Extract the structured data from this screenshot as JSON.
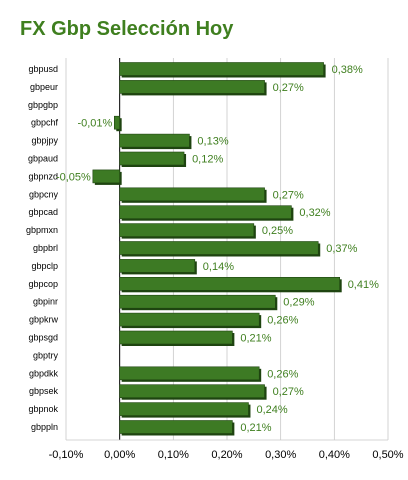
{
  "chart_data": {
    "type": "bar",
    "orientation": "horizontal",
    "title": "FX Gbp Selección Hoy",
    "categories": [
      "gbpusd",
      "gbpeur",
      "gbpgbp",
      "gbpchf",
      "gbpjpy",
      "gbpaud",
      "gbpnzd",
      "gbpcny",
      "gbpcad",
      "gbpmxn",
      "gbpbrl",
      "gbpclp",
      "gbpcop",
      "gbpinr",
      "gbpkrw",
      "gbpsgd",
      "gbptry",
      "gbpdkk",
      "gbpsek",
      "gbpnok",
      "gbppln"
    ],
    "values": [
      0.38,
      0.27,
      null,
      -0.01,
      0.13,
      0.12,
      -0.05,
      0.27,
      0.32,
      0.25,
      0.37,
      0.14,
      0.41,
      0.29,
      0.26,
      0.21,
      null,
      0.26,
      0.27,
      0.24,
      0.21
    ],
    "data_labels": [
      "0,38%",
      "0,27%",
      "",
      "-0,01%",
      "0,13%",
      "0,12%",
      "-0,05%",
      "0,27%",
      "0,32%",
      "0,25%",
      "0,37%",
      "0,14%",
      "0,41%",
      "0,29%",
      "0,26%",
      "0,21%",
      "",
      "0,26%",
      "0,27%",
      "0,24%",
      "0,21%"
    ],
    "xlim": [
      -0.1,
      0.5
    ],
    "xticks": [
      -0.1,
      0,
      0.1,
      0.2,
      0.3,
      0.4,
      0.5
    ],
    "xtick_labels": [
      "-0,10%",
      "0,00%",
      "0,10%",
      "0,20%",
      "0,30%",
      "0,40%",
      "0,50%"
    ],
    "grid": "vertical",
    "legend": "none",
    "colors": {
      "bar": "#3d7a24",
      "bar_edge": "#1e4410",
      "label": "#3f7f1f",
      "grid": "#c8c8c8"
    }
  }
}
